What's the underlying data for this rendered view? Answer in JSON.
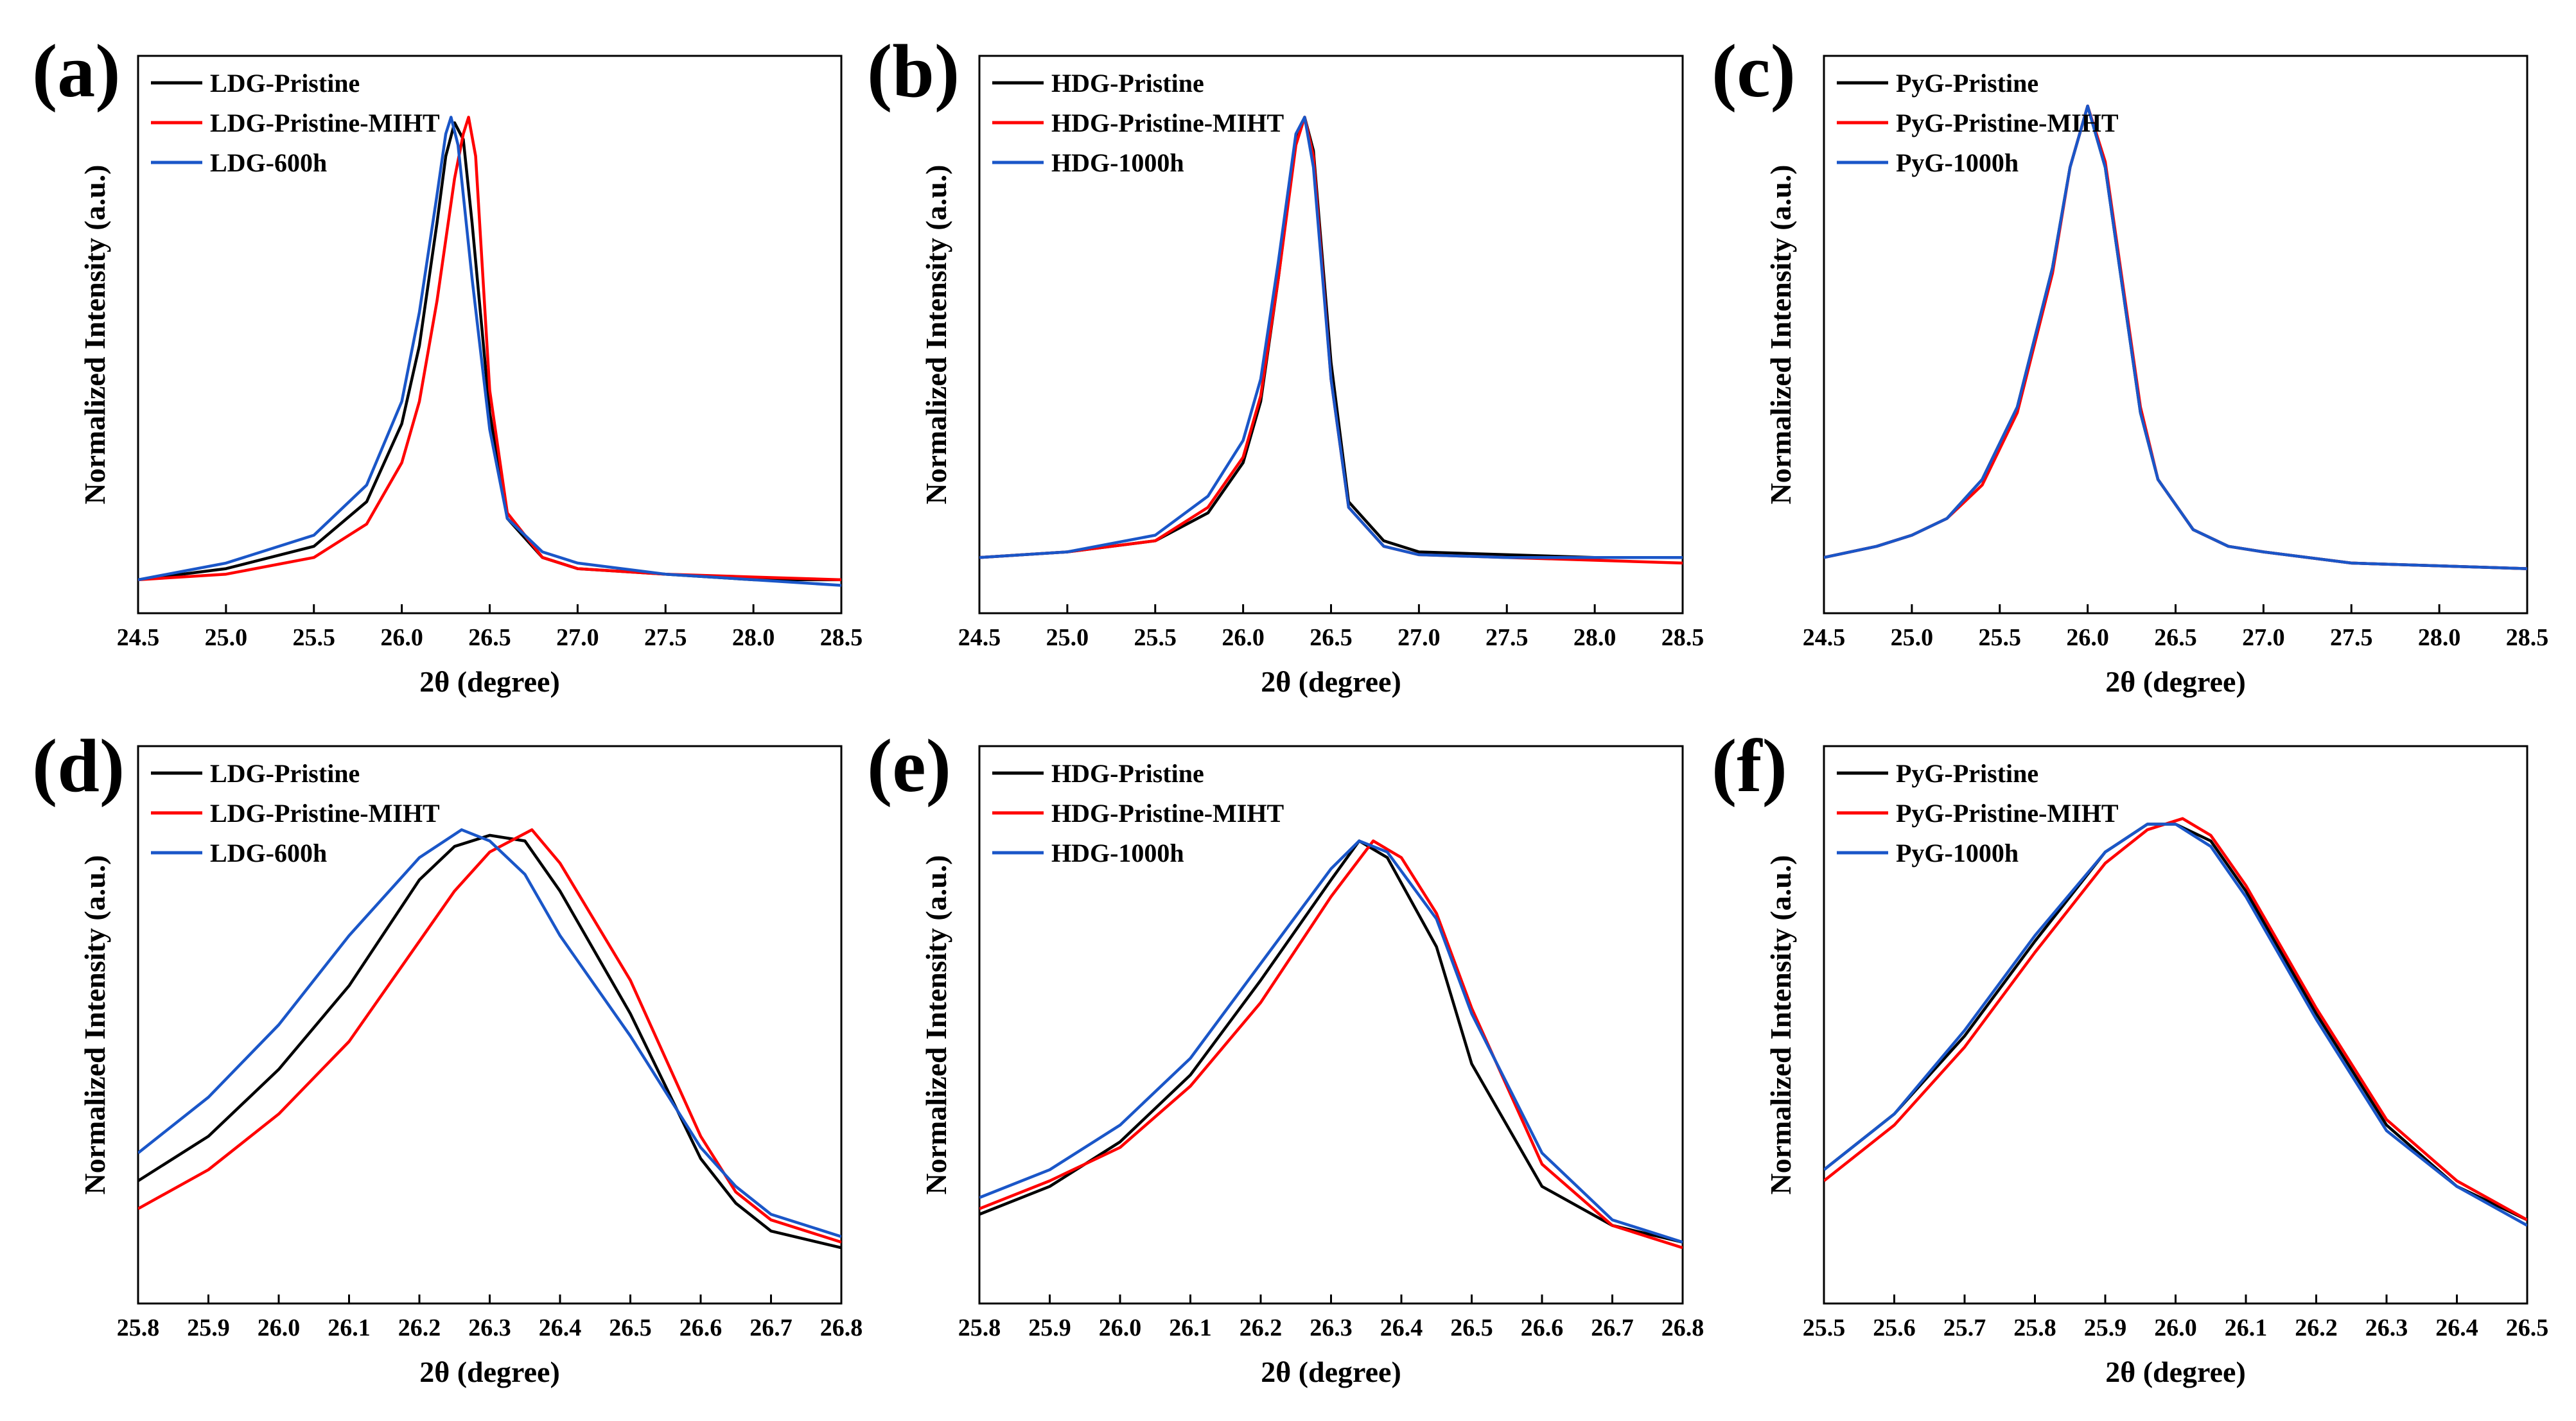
{
  "figure": {
    "colors": {
      "black": "#000000",
      "red": "#ff0000",
      "blue": "#1a56c8"
    }
  },
  "chart_data": [
    {
      "panel": "(a)",
      "type": "line",
      "xlabel": "2θ (degree)",
      "ylabel": "Normalized Intensity (a.u.)",
      "xlim": [
        24.5,
        28.5
      ],
      "ylim": [
        0,
        1
      ],
      "xticks": [
        "24.5",
        "25.0",
        "25.5",
        "26.0",
        "26.5",
        "27.0",
        "27.5",
        "28.0",
        "28.5"
      ],
      "legend_position": "top-left",
      "series": [
        {
          "name": "LDG-Pristine",
          "color": "#000000",
          "x": [
            24.5,
            25.0,
            25.5,
            25.8,
            26.0,
            26.1,
            26.2,
            26.25,
            26.3,
            26.35,
            26.4,
            26.5,
            26.6,
            26.8,
            27.0,
            27.5,
            28.0,
            28.5
          ],
          "y": [
            0.06,
            0.08,
            0.12,
            0.2,
            0.34,
            0.48,
            0.7,
            0.82,
            0.88,
            0.85,
            0.7,
            0.36,
            0.17,
            0.1,
            0.08,
            0.07,
            0.06,
            0.06
          ]
        },
        {
          "name": "LDG-Pristine-MIHT",
          "color": "#ff0000",
          "x": [
            24.5,
            25.0,
            25.5,
            25.8,
            26.0,
            26.1,
            26.2,
            26.3,
            26.35,
            26.38,
            26.42,
            26.5,
            26.6,
            26.8,
            27.0,
            27.5,
            28.0,
            28.5
          ],
          "y": [
            0.06,
            0.07,
            0.1,
            0.16,
            0.27,
            0.38,
            0.56,
            0.78,
            0.86,
            0.89,
            0.82,
            0.4,
            0.18,
            0.1,
            0.08,
            0.07,
            0.065,
            0.06
          ]
        },
        {
          "name": "LDG-600h",
          "color": "#1a56c8",
          "x": [
            24.5,
            25.0,
            25.5,
            25.8,
            26.0,
            26.1,
            26.2,
            26.25,
            26.28,
            26.32,
            26.4,
            26.5,
            26.6,
            26.8,
            27.0,
            27.5,
            28.0,
            28.5
          ],
          "y": [
            0.06,
            0.09,
            0.14,
            0.23,
            0.38,
            0.54,
            0.75,
            0.86,
            0.89,
            0.84,
            0.6,
            0.33,
            0.17,
            0.11,
            0.09,
            0.07,
            0.06,
            0.05
          ]
        }
      ]
    },
    {
      "panel": "(b)",
      "type": "line",
      "xlabel": "2θ (degree)",
      "ylabel": "Normalized Intensity (a.u.)",
      "xlim": [
        24.5,
        28.5
      ],
      "ylim": [
        0,
        1
      ],
      "xticks": [
        "24.5",
        "25.0",
        "25.5",
        "26.0",
        "26.5",
        "27.0",
        "27.5",
        "28.0",
        "28.5"
      ],
      "legend_position": "top-left",
      "series": [
        {
          "name": "HDG-Pristine",
          "color": "#000000",
          "x": [
            24.5,
            25.0,
            25.5,
            25.8,
            26.0,
            26.1,
            26.2,
            26.3,
            26.35,
            26.4,
            26.5,
            26.6,
            26.8,
            27.0,
            27.5,
            28.0,
            28.5
          ],
          "y": [
            0.1,
            0.11,
            0.13,
            0.18,
            0.27,
            0.38,
            0.6,
            0.85,
            0.89,
            0.83,
            0.45,
            0.2,
            0.13,
            0.11,
            0.105,
            0.1,
            0.1
          ]
        },
        {
          "name": "HDG-Pristine-MIHT",
          "color": "#ff0000",
          "x": [
            24.5,
            25.0,
            25.5,
            25.8,
            26.0,
            26.1,
            26.2,
            26.3,
            26.35,
            26.4,
            26.5,
            26.6,
            26.8,
            27.0,
            27.5,
            28.0,
            28.5
          ],
          "y": [
            0.1,
            0.11,
            0.13,
            0.19,
            0.28,
            0.39,
            0.6,
            0.84,
            0.89,
            0.82,
            0.42,
            0.19,
            0.12,
            0.105,
            0.1,
            0.095,
            0.09
          ]
        },
        {
          "name": "HDG-1000h",
          "color": "#1a56c8",
          "x": [
            24.5,
            25.0,
            25.5,
            25.8,
            26.0,
            26.1,
            26.2,
            26.3,
            26.35,
            26.4,
            26.5,
            26.6,
            26.8,
            27.0,
            27.5,
            28.0,
            28.5
          ],
          "y": [
            0.1,
            0.11,
            0.14,
            0.21,
            0.31,
            0.42,
            0.63,
            0.86,
            0.89,
            0.8,
            0.42,
            0.19,
            0.12,
            0.105,
            0.1,
            0.1,
            0.1
          ]
        }
      ]
    },
    {
      "panel": "(c)",
      "type": "line",
      "xlabel": "2θ (degree)",
      "ylabel": "Normalized Intensity (a.u.)",
      "xlim": [
        24.5,
        28.5
      ],
      "ylim": [
        0,
        1
      ],
      "xticks": [
        "24.5",
        "25.0",
        "25.5",
        "26.0",
        "26.5",
        "27.0",
        "27.5",
        "28.0",
        "28.5"
      ],
      "legend_position": "top-left",
      "series": [
        {
          "name": "PyG-Pristine",
          "color": "#000000",
          "x": [
            24.5,
            24.8,
            25.0,
            25.2,
            25.4,
            25.6,
            25.8,
            25.9,
            26.0,
            26.1,
            26.2,
            26.3,
            26.4,
            26.6,
            26.8,
            27.0,
            27.5,
            28.0,
            28.5
          ],
          "y": [
            0.1,
            0.12,
            0.14,
            0.17,
            0.24,
            0.37,
            0.62,
            0.8,
            0.91,
            0.8,
            0.58,
            0.36,
            0.24,
            0.15,
            0.12,
            0.11,
            0.09,
            0.085,
            0.08
          ]
        },
        {
          "name": "PyG-Pristine-MIHT",
          "color": "#ff0000",
          "x": [
            24.5,
            24.8,
            25.0,
            25.2,
            25.4,
            25.6,
            25.8,
            25.9,
            26.0,
            26.1,
            26.2,
            26.3,
            26.4,
            26.6,
            26.8,
            27.0,
            27.5,
            28.0,
            28.5
          ],
          "y": [
            0.1,
            0.12,
            0.14,
            0.17,
            0.23,
            0.36,
            0.61,
            0.8,
            0.91,
            0.81,
            0.59,
            0.37,
            0.24,
            0.15,
            0.12,
            0.11,
            0.09,
            0.085,
            0.08
          ]
        },
        {
          "name": "PyG-1000h",
          "color": "#1a56c8",
          "x": [
            24.5,
            24.8,
            25.0,
            25.2,
            25.4,
            25.6,
            25.8,
            25.9,
            26.0,
            26.1,
            26.2,
            26.3,
            26.4,
            26.6,
            26.8,
            27.0,
            27.5,
            28.0,
            28.5
          ],
          "y": [
            0.1,
            0.12,
            0.14,
            0.17,
            0.24,
            0.37,
            0.62,
            0.8,
            0.91,
            0.8,
            0.58,
            0.36,
            0.24,
            0.15,
            0.12,
            0.11,
            0.09,
            0.085,
            0.08
          ]
        }
      ]
    },
    {
      "panel": "(d)",
      "type": "line",
      "xlabel": "2θ (degree)",
      "ylabel": "Normalized Intensity (a.u.)",
      "xlim": [
        25.8,
        26.8
      ],
      "ylim": [
        0,
        1
      ],
      "xticks": [
        "25.8",
        "25.9",
        "26.0",
        "26.1",
        "26.2",
        "26.3",
        "26.4",
        "26.5",
        "26.6",
        "26.7",
        "26.8"
      ],
      "legend_position": "top-left",
      "series": [
        {
          "name": "LDG-Pristine",
          "color": "#000000",
          "x": [
            25.8,
            25.9,
            26.0,
            26.1,
            26.2,
            26.25,
            26.3,
            26.35,
            26.4,
            26.5,
            26.6,
            26.65,
            26.7,
            26.8
          ],
          "y": [
            0.22,
            0.3,
            0.42,
            0.57,
            0.76,
            0.82,
            0.84,
            0.83,
            0.74,
            0.52,
            0.26,
            0.18,
            0.13,
            0.1
          ]
        },
        {
          "name": "LDG-Pristine-MIHT",
          "color": "#ff0000",
          "x": [
            25.8,
            25.9,
            26.0,
            26.1,
            26.2,
            26.25,
            26.3,
            26.36,
            26.4,
            26.5,
            26.6,
            26.65,
            26.7,
            26.8
          ],
          "y": [
            0.17,
            0.24,
            0.34,
            0.47,
            0.65,
            0.74,
            0.81,
            0.85,
            0.79,
            0.58,
            0.3,
            0.2,
            0.15,
            0.11
          ]
        },
        {
          "name": "LDG-600h",
          "color": "#1a56c8",
          "x": [
            25.8,
            25.9,
            26.0,
            26.1,
            26.2,
            26.26,
            26.3,
            26.35,
            26.4,
            26.5,
            26.6,
            26.65,
            26.7,
            26.8
          ],
          "y": [
            0.27,
            0.37,
            0.5,
            0.66,
            0.8,
            0.85,
            0.83,
            0.77,
            0.66,
            0.48,
            0.28,
            0.21,
            0.16,
            0.12
          ]
        }
      ]
    },
    {
      "panel": "(e)",
      "type": "line",
      "xlabel": "2θ (degree)",
      "ylabel": "Normalized Intensity (a.u.)",
      "xlim": [
        25.8,
        26.8
      ],
      "ylim": [
        0,
        1
      ],
      "xticks": [
        "25.8",
        "25.9",
        "26.0",
        "26.1",
        "26.2",
        "26.3",
        "26.4",
        "26.5",
        "26.6",
        "26.7",
        "26.8"
      ],
      "legend_position": "top-left",
      "series": [
        {
          "name": "HDG-Pristine",
          "color": "#000000",
          "x": [
            25.8,
            25.9,
            26.0,
            26.1,
            26.2,
            26.3,
            26.34,
            26.38,
            26.45,
            26.5,
            26.6,
            26.7,
            26.8
          ],
          "y": [
            0.16,
            0.21,
            0.29,
            0.41,
            0.58,
            0.76,
            0.83,
            0.8,
            0.64,
            0.43,
            0.21,
            0.14,
            0.11
          ]
        },
        {
          "name": "HDG-Pristine-MIHT",
          "color": "#ff0000",
          "x": [
            25.8,
            25.9,
            26.0,
            26.1,
            26.2,
            26.3,
            26.36,
            26.4,
            26.45,
            26.5,
            26.6,
            26.7,
            26.8
          ],
          "y": [
            0.17,
            0.22,
            0.28,
            0.39,
            0.54,
            0.73,
            0.83,
            0.8,
            0.7,
            0.53,
            0.25,
            0.14,
            0.1
          ]
        },
        {
          "name": "HDG-1000h",
          "color": "#1a56c8",
          "x": [
            25.8,
            25.9,
            26.0,
            26.1,
            26.2,
            26.3,
            26.34,
            26.38,
            26.45,
            26.5,
            26.6,
            26.7,
            26.8
          ],
          "y": [
            0.19,
            0.24,
            0.32,
            0.44,
            0.61,
            0.78,
            0.83,
            0.81,
            0.69,
            0.52,
            0.27,
            0.15,
            0.11
          ]
        }
      ]
    },
    {
      "panel": "(f)",
      "type": "line",
      "xlabel": "2θ (degree)",
      "ylabel": "Normalized Intensity (a.u.)",
      "xlim": [
        25.5,
        26.5
      ],
      "ylim": [
        0,
        1
      ],
      "xticks": [
        "25.5",
        "25.6",
        "25.7",
        "25.8",
        "25.9",
        "26.0",
        "26.1",
        "26.2",
        "26.3",
        "26.4",
        "26.5"
      ],
      "legend_position": "top-left",
      "series": [
        {
          "name": "PyG-Pristine",
          "color": "#000000",
          "x": [
            25.5,
            25.6,
            25.7,
            25.8,
            25.9,
            25.96,
            26.0,
            26.05,
            26.1,
            26.2,
            26.3,
            26.4,
            26.5
          ],
          "y": [
            0.24,
            0.34,
            0.48,
            0.65,
            0.81,
            0.86,
            0.86,
            0.83,
            0.74,
            0.52,
            0.32,
            0.21,
            0.15
          ]
        },
        {
          "name": "PyG-Pristine-MIHT",
          "color": "#ff0000",
          "x": [
            25.5,
            25.6,
            25.7,
            25.8,
            25.9,
            25.96,
            26.01,
            26.05,
            26.1,
            26.2,
            26.3,
            26.4,
            26.5
          ],
          "y": [
            0.22,
            0.32,
            0.46,
            0.63,
            0.79,
            0.85,
            0.87,
            0.84,
            0.75,
            0.53,
            0.33,
            0.22,
            0.15
          ]
        },
        {
          "name": "PyG-1000h",
          "color": "#1a56c8",
          "x": [
            25.5,
            25.6,
            25.7,
            25.8,
            25.9,
            25.96,
            26.0,
            26.05,
            26.1,
            26.2,
            26.3,
            26.4,
            26.5
          ],
          "y": [
            0.24,
            0.34,
            0.49,
            0.66,
            0.81,
            0.86,
            0.86,
            0.82,
            0.73,
            0.51,
            0.31,
            0.21,
            0.14
          ]
        }
      ]
    }
  ]
}
